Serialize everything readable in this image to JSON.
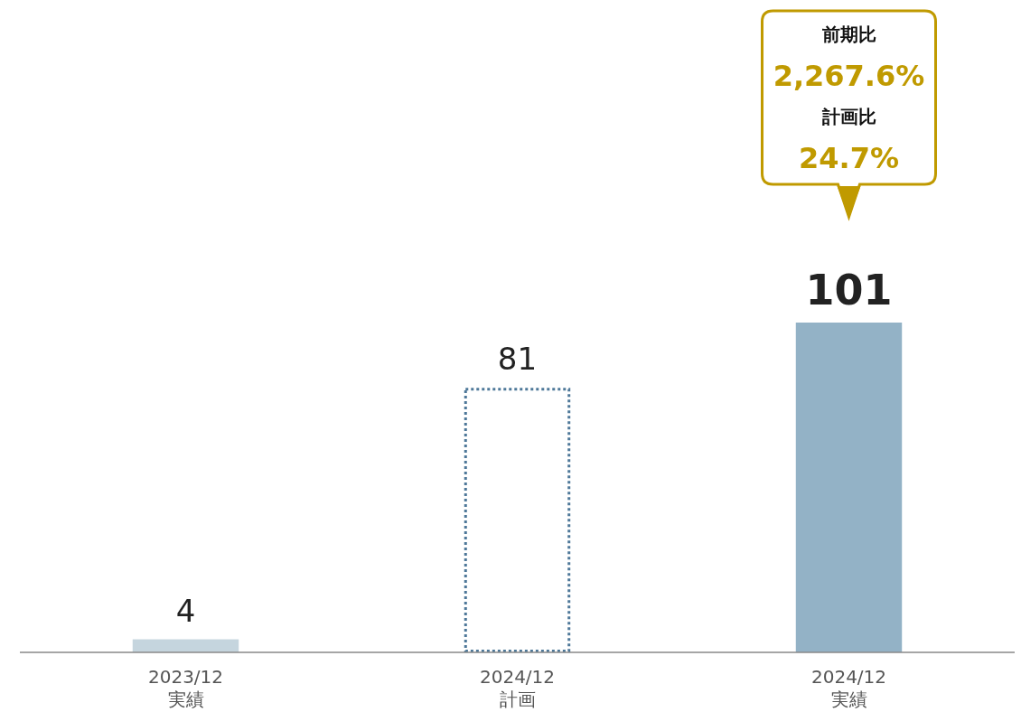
{
  "chart_data": {
    "type": "bar",
    "categories": [
      "2023/12\n実績",
      "2024/12\n計画",
      "2024/12\n実績"
    ],
    "series": [
      {
        "values": [
          4,
          null,
          101
        ],
        "colors": [
          "#c5d5de",
          null,
          "#93b2c6"
        ]
      },
      {
        "values": [
          null,
          81,
          null
        ],
        "color": "#4e7899",
        "line_style": "dotted"
      }
    ],
    "data_labels": true,
    "annotations": [
      "前期比",
      "2,267.6%",
      "計画比",
      "24.7%"
    ]
  }
}
